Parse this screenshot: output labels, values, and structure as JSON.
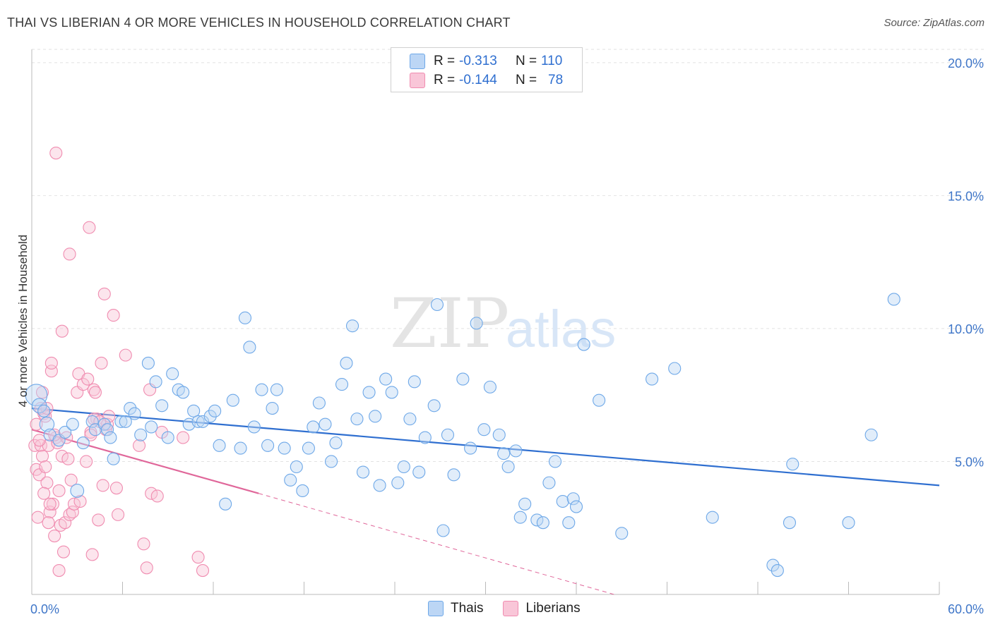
{
  "header": {
    "title": "THAI VS LIBERIAN 4 OR MORE VEHICLES IN HOUSEHOLD CORRELATION CHART",
    "source": "Source: ZipAtlas.com"
  },
  "watermark": {
    "zip": "ZIP",
    "atlas": "atlas"
  },
  "legend": {
    "rows": [
      {
        "r_label": "R =",
        "r_value": "-0.313",
        "n_label": "N =",
        "n_value": "110",
        "color": "#6ea8e8",
        "fill": "#bcd6f5"
      },
      {
        "r_label": "R =",
        "r_value": "-0.144",
        "n_label": "N =",
        "n_value": "78",
        "color": "#f08cb0",
        "fill": "#f9c6d8"
      }
    ]
  },
  "bottom_legend": {
    "items": [
      "Thais",
      "Liberians"
    ]
  },
  "chart_data": {
    "type": "scatter",
    "title": "THAI VS LIBERIAN 4 OR MORE VEHICLES IN HOUSEHOLD CORRELATION CHART",
    "ylabel": "4 or more Vehicles in Household",
    "xlabel": "",
    "xlim": [
      0,
      60
    ],
    "ylim": [
      0,
      20.5
    ],
    "x_tick_labels": [
      "0.0%",
      "60.0%"
    ],
    "y_ticks": [
      5,
      10,
      15,
      20
    ],
    "y_tick_labels": [
      "5.0%",
      "10.0%",
      "15.0%",
      "20.0%"
    ],
    "grid": "horizontal dashed",
    "legend_position": "top-center",
    "series": [
      {
        "name": "Thais",
        "color": "#6ea8e8",
        "fill": "#bcd6f5",
        "trend": {
          "x": [
            0,
            60
          ],
          "y": [
            7.0,
            4.1
          ],
          "color": "#2f6fd0"
        },
        "points": [
          [
            0.3,
            7.5,
            1.8
          ],
          [
            0.5,
            7.1,
            1.2
          ],
          [
            0.8,
            6.9,
            1
          ],
          [
            1.0,
            6.4,
            1.2
          ],
          [
            1.2,
            6.0,
            1
          ],
          [
            1.8,
            5.8,
            1
          ],
          [
            2.2,
            6.1,
            1
          ],
          [
            2.7,
            6.4,
            1
          ],
          [
            3.4,
            5.7,
            1
          ],
          [
            3.0,
            3.9,
            1.1
          ],
          [
            4.0,
            6.5,
            1
          ],
          [
            4.2,
            6.2,
            1
          ],
          [
            4.8,
            6.4,
            1
          ],
          [
            5.0,
            6.2,
            1
          ],
          [
            5.2,
            5.9,
            1
          ],
          [
            5.4,
            5.1,
            1
          ],
          [
            5.9,
            6.5,
            1
          ],
          [
            6.2,
            6.5,
            1
          ],
          [
            6.5,
            7.0,
            1
          ],
          [
            6.8,
            6.8,
            1
          ],
          [
            7.2,
            6.0,
            1
          ],
          [
            7.7,
            8.7,
            1
          ],
          [
            7.9,
            6.3,
            1
          ],
          [
            8.2,
            8.0,
            1
          ],
          [
            8.6,
            7.1,
            1
          ],
          [
            9.0,
            5.9,
            1
          ],
          [
            9.3,
            8.3,
            1
          ],
          [
            9.7,
            7.7,
            1
          ],
          [
            10.0,
            7.6,
            1
          ],
          [
            10.4,
            6.4,
            1
          ],
          [
            10.7,
            6.9,
            1
          ],
          [
            11.0,
            6.5,
            1
          ],
          [
            11.3,
            6.5,
            1
          ],
          [
            11.8,
            6.7,
            1
          ],
          [
            12.1,
            6.9,
            1
          ],
          [
            12.4,
            5.6,
            1
          ],
          [
            12.8,
            3.4,
            1
          ],
          [
            13.3,
            7.3,
            1
          ],
          [
            13.8,
            5.5,
            1
          ],
          [
            14.1,
            10.4,
            1
          ],
          [
            14.4,
            9.3,
            1
          ],
          [
            14.7,
            6.3,
            1
          ],
          [
            15.2,
            7.7,
            1
          ],
          [
            15.6,
            5.6,
            1
          ],
          [
            15.9,
            7.0,
            1
          ],
          [
            16.2,
            7.7,
            1
          ],
          [
            16.7,
            5.5,
            1
          ],
          [
            17.1,
            4.3,
            1
          ],
          [
            17.5,
            4.8,
            1
          ],
          [
            17.9,
            3.9,
            1
          ],
          [
            18.3,
            5.5,
            1
          ],
          [
            18.6,
            6.3,
            1
          ],
          [
            19.0,
            7.2,
            1
          ],
          [
            19.4,
            6.4,
            1
          ],
          [
            19.8,
            5.0,
            1
          ],
          [
            20.1,
            5.7,
            1
          ],
          [
            20.5,
            7.9,
            1
          ],
          [
            20.8,
            8.7,
            1
          ],
          [
            21.2,
            10.1,
            1
          ],
          [
            21.5,
            6.6,
            1
          ],
          [
            21.9,
            4.6,
            1
          ],
          [
            22.3,
            7.6,
            1
          ],
          [
            22.7,
            6.7,
            1
          ],
          [
            23.0,
            4.1,
            1
          ],
          [
            23.4,
            8.1,
            1
          ],
          [
            23.8,
            7.6,
            1
          ],
          [
            24.2,
            4.2,
            1
          ],
          [
            24.6,
            4.8,
            1
          ],
          [
            25.0,
            6.6,
            1
          ],
          [
            25.3,
            8.0,
            1
          ],
          [
            25.6,
            4.6,
            1
          ],
          [
            26.0,
            5.9,
            1
          ],
          [
            26.6,
            7.1,
            1
          ],
          [
            27.2,
            2.4,
            1
          ],
          [
            27.5,
            6.0,
            1
          ],
          [
            27.9,
            4.5,
            1
          ],
          [
            28.5,
            8.1,
            1
          ],
          [
            29.0,
            5.5,
            1
          ],
          [
            29.4,
            10.2,
            1
          ],
          [
            29.9,
            6.2,
            1
          ],
          [
            30.3,
            7.8,
            1
          ],
          [
            30.9,
            6.0,
            1
          ],
          [
            31.2,
            5.3,
            1
          ],
          [
            31.5,
            4.8,
            1
          ],
          [
            32.0,
            5.4,
            1
          ],
          [
            32.3,
            2.9,
            1
          ],
          [
            32.6,
            3.4,
            1
          ],
          [
            33.4,
            2.8,
            1
          ],
          [
            33.8,
            2.7,
            1
          ],
          [
            34.2,
            4.2,
            1
          ],
          [
            34.6,
            5.0,
            1
          ],
          [
            35.1,
            3.5,
            1
          ],
          [
            35.5,
            2.7,
            1
          ],
          [
            35.8,
            3.6,
            1
          ],
          [
            36.0,
            3.3,
            1
          ],
          [
            36.5,
            9.4,
            1
          ],
          [
            37.5,
            7.3,
            1
          ],
          [
            39.0,
            2.3,
            1
          ],
          [
            41.0,
            8.1,
            1
          ],
          [
            42.5,
            8.5,
            1
          ],
          [
            45.0,
            2.9,
            1
          ],
          [
            49.0,
            1.1,
            1
          ],
          [
            49.3,
            0.9,
            1
          ],
          [
            50.1,
            2.7,
            1
          ],
          [
            50.3,
            4.9,
            1
          ],
          [
            54.0,
            2.7,
            1
          ],
          [
            55.5,
            6.0,
            1
          ],
          [
            57.0,
            11.1,
            1
          ],
          [
            26.8,
            10.9,
            1
          ],
          [
            22.0,
            2.5,
            0.001
          ]
        ]
      },
      {
        "name": "Liberians",
        "color": "#f08cb0",
        "fill": "#f9c6d8",
        "trend": {
          "x": [
            0,
            15
          ],
          "y": [
            6.2,
            3.8
          ],
          "dash_x": [
            15,
            38.5
          ],
          "dash_y": [
            3.8,
            0.0
          ],
          "color": "#e0679a"
        },
        "points": [
          [
            0.2,
            5.6,
            1
          ],
          [
            0.3,
            4.7,
            1
          ],
          [
            0.4,
            2.9,
            1
          ],
          [
            0.5,
            4.5,
            1
          ],
          [
            0.6,
            5.6,
            1
          ],
          [
            0.7,
            5.2,
            1
          ],
          [
            0.8,
            6.8,
            1
          ],
          [
            0.9,
            4.8,
            1
          ],
          [
            1.0,
            4.2,
            1
          ],
          [
            1.1,
            5.6,
            1
          ],
          [
            1.2,
            3.1,
            1
          ],
          [
            1.3,
            8.4,
            1
          ],
          [
            1.4,
            3.4,
            1
          ],
          [
            1.5,
            2.2,
            1
          ],
          [
            1.6,
            5.9,
            1
          ],
          [
            1.7,
            5.7,
            1
          ],
          [
            1.8,
            3.9,
            1
          ],
          [
            1.9,
            2.6,
            1
          ],
          [
            2.0,
            5.2,
            1
          ],
          [
            2.1,
            1.6,
            1
          ],
          [
            2.2,
            2.7,
            1
          ],
          [
            2.3,
            5.9,
            1
          ],
          [
            2.4,
            5.1,
            1
          ],
          [
            2.5,
            3.0,
            1
          ],
          [
            2.6,
            4.3,
            1
          ],
          [
            2.7,
            3.1,
            1
          ],
          [
            2.8,
            3.4,
            1
          ],
          [
            3.0,
            7.6,
            1
          ],
          [
            3.1,
            8.3,
            1
          ],
          [
            3.2,
            3.5,
            1
          ],
          [
            3.4,
            7.9,
            1
          ],
          [
            3.6,
            5.0,
            1
          ],
          [
            3.7,
            8.1,
            1
          ],
          [
            3.9,
            6.1,
            1
          ],
          [
            4.0,
            1.5,
            1
          ],
          [
            4.1,
            7.7,
            1
          ],
          [
            4.2,
            7.6,
            1
          ],
          [
            4.3,
            6.6,
            1
          ],
          [
            4.4,
            2.8,
            1
          ],
          [
            4.6,
            8.7,
            1
          ],
          [
            4.7,
            4.1,
            1
          ],
          [
            4.8,
            11.3,
            1
          ],
          [
            4.9,
            6.2,
            1
          ],
          [
            5.0,
            6.4,
            1
          ],
          [
            5.1,
            6.7,
            1
          ],
          [
            5.4,
            10.5,
            1
          ],
          [
            5.6,
            4.0,
            1
          ],
          [
            5.7,
            3.0,
            1
          ],
          [
            6.2,
            9.0,
            1
          ],
          [
            7.1,
            5.6,
            1
          ],
          [
            7.4,
            1.9,
            1
          ],
          [
            7.6,
            1.0,
            1
          ],
          [
            7.8,
            7.7,
            1
          ],
          [
            7.9,
            3.8,
            1
          ],
          [
            8.3,
            3.7,
            1
          ],
          [
            8.6,
            6.1,
            1
          ],
          [
            10.0,
            5.9,
            1
          ],
          [
            11.0,
            1.4,
            1
          ],
          [
            11.3,
            0.9,
            1
          ],
          [
            0.3,
            6.4,
            1
          ],
          [
            0.5,
            5.8,
            1
          ],
          [
            0.6,
            7.0,
            1
          ],
          [
            0.7,
            7.6,
            1
          ],
          [
            0.8,
            3.8,
            1
          ],
          [
            0.9,
            6.7,
            1
          ],
          [
            1.0,
            7.0,
            1
          ],
          [
            1.1,
            2.7,
            1
          ],
          [
            1.2,
            3.4,
            1
          ],
          [
            1.3,
            8.7,
            1
          ],
          [
            1.5,
            6.0,
            1
          ],
          [
            1.6,
            16.6,
            1
          ],
          [
            1.8,
            0.9,
            1
          ],
          [
            2.0,
            9.9,
            1
          ],
          [
            2.5,
            12.8,
            1
          ],
          [
            3.8,
            13.8,
            1
          ],
          [
            3.9,
            6.0,
            1
          ],
          [
            4.1,
            6.6,
            1
          ],
          [
            4.5,
            6.5,
            1
          ]
        ]
      }
    ]
  }
}
